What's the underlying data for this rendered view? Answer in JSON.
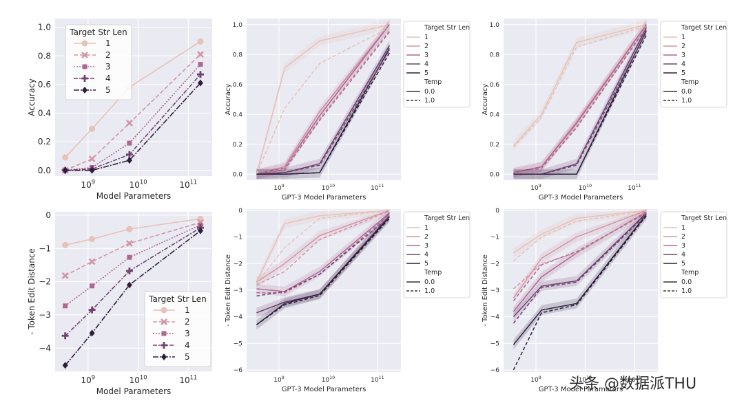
{
  "figure": {
    "watermark": "头条 @数据派THU"
  },
  "palette": [
    "#e6c2b8",
    "#d296a4",
    "#ae6790",
    "#70406e",
    "#2e1e3c"
  ],
  "chart_data": [
    {
      "id": "acc_left",
      "type": "line",
      "style": "markers",
      "xlabel": "Model Parameters",
      "ylabel": "Accuracy",
      "ylim": [
        -0.04,
        1.06
      ],
      "yticks": [
        "0.0",
        "0.2",
        "0.4",
        "0.6",
        "0.8",
        "1.0"
      ],
      "ytick_values": [
        0,
        0.2,
        0.4,
        0.6,
        0.8,
        1.0
      ],
      "xticks": [
        "10^9",
        "10^10",
        "10^11"
      ],
      "x": [
        0.35,
        1.2,
        6.7,
        175
      ],
      "legend": {
        "title": "Target Str Len",
        "labels": [
          "1",
          "2",
          "3",
          "4",
          "5"
        ],
        "position": "upper-left"
      },
      "series": [
        {
          "name": "1",
          "values": [
            0.09,
            0.29,
            0.58,
            0.9
          ]
        },
        {
          "name": "2",
          "values": [
            0.0,
            0.08,
            0.33,
            0.81
          ]
        },
        {
          "name": "3",
          "values": [
            0.0,
            0.02,
            0.19,
            0.74
          ]
        },
        {
          "name": "4",
          "values": [
            0.0,
            0.01,
            0.11,
            0.67
          ]
        },
        {
          "name": "5",
          "values": [
            0.0,
            0.0,
            0.07,
            0.61
          ]
        }
      ]
    },
    {
      "id": "acc_mid",
      "type": "line",
      "style": "temp",
      "xlabel": "GPT-3 Model Parameters",
      "ylabel": "Accuracy",
      "ylim": [
        -0.04,
        1.04
      ],
      "yticks": [
        "0.0",
        "0.2",
        "0.4",
        "0.6",
        "0.8",
        "1.0"
      ],
      "ytick_values": [
        0,
        0.2,
        0.4,
        0.6,
        0.8,
        1.0
      ],
      "xticks": [
        "10^9",
        "10^10",
        "10^11"
      ],
      "x": [
        0.35,
        1.3,
        6.7,
        175
      ],
      "legend": {
        "title": "Target Str Len",
        "labels": [
          "1",
          "2",
          "3",
          "4",
          "5"
        ],
        "temp_title": "Temp",
        "temp_labels": [
          "0.0",
          "1.0"
        ],
        "position": "outside-right"
      },
      "series": [
        {
          "name": "1",
          "temp": "0.0",
          "values": [
            0.0,
            0.71,
            0.89,
            1.0
          ]
        },
        {
          "name": "2",
          "temp": "0.0",
          "values": [
            0.0,
            0.05,
            0.42,
            1.0
          ]
        },
        {
          "name": "3",
          "temp": "0.0",
          "values": [
            0.0,
            0.04,
            0.39,
            1.0
          ]
        },
        {
          "name": "4",
          "temp": "0.0",
          "values": [
            0.0,
            0.01,
            0.07,
            0.86
          ]
        },
        {
          "name": "5",
          "temp": "0.0",
          "values": [
            0.0,
            0.0,
            0.01,
            0.84
          ]
        },
        {
          "name": "1",
          "temp": "1.0",
          "values": [
            0.0,
            0.44,
            0.74,
            0.98
          ]
        },
        {
          "name": "2",
          "temp": "1.0",
          "values": [
            0.0,
            0.04,
            0.37,
            0.96
          ]
        },
        {
          "name": "3",
          "temp": "1.0",
          "values": [
            0.0,
            0.03,
            0.36,
            0.95
          ]
        },
        {
          "name": "4",
          "temp": "1.0",
          "values": [
            0.0,
            0.01,
            0.06,
            0.83
          ]
        },
        {
          "name": "5",
          "temp": "1.0",
          "values": [
            0.0,
            0.0,
            0.01,
            0.81
          ]
        }
      ]
    },
    {
      "id": "acc_right",
      "type": "line",
      "style": "temp",
      "xlabel": "GPT-3 Model Parameters",
      "ylabel": "Accuracy",
      "ylim": [
        -0.04,
        1.04
      ],
      "yticks": [
        "0.0",
        "0.2",
        "0.4",
        "0.6",
        "0.8",
        "1.0"
      ],
      "ytick_values": [
        0,
        0.2,
        0.4,
        0.6,
        0.8,
        1.0
      ],
      "xticks": [
        "10^9",
        "10^10",
        "10^11"
      ],
      "x": [
        0.35,
        1.3,
        6.7,
        175
      ],
      "legend": {
        "title": "Target Str Len",
        "labels": [
          "1",
          "2",
          "3",
          "4",
          "5"
        ],
        "temp_title": "Temp",
        "temp_labels": [
          "0.0",
          "1.0"
        ],
        "position": "outside-right"
      },
      "series": [
        {
          "name": "1",
          "temp": "0.0",
          "values": [
            0.19,
            0.4,
            0.88,
            1.0
          ]
        },
        {
          "name": "2",
          "temp": "0.0",
          "values": [
            0.01,
            0.05,
            0.35,
            1.0
          ]
        },
        {
          "name": "3",
          "temp": "0.0",
          "values": [
            0.01,
            0.05,
            0.34,
            1.0
          ]
        },
        {
          "name": "4",
          "temp": "0.0",
          "values": [
            0.0,
            0.0,
            0.07,
            0.98
          ]
        },
        {
          "name": "5",
          "temp": "0.0",
          "values": [
            0.0,
            0.0,
            0.0,
            0.96
          ]
        },
        {
          "name": "1",
          "temp": "1.0",
          "values": [
            0.18,
            0.38,
            0.85,
            0.99
          ]
        },
        {
          "name": "2",
          "temp": "1.0",
          "values": [
            0.01,
            0.04,
            0.32,
            0.99
          ]
        },
        {
          "name": "3",
          "temp": "1.0",
          "values": [
            0.01,
            0.04,
            0.31,
            0.98
          ]
        },
        {
          "name": "4",
          "temp": "1.0",
          "values": [
            0.0,
            0.0,
            0.06,
            0.95
          ]
        },
        {
          "name": "5",
          "temp": "1.0",
          "values": [
            0.0,
            0.0,
            0.0,
            0.93
          ]
        }
      ]
    },
    {
      "id": "ted_left",
      "type": "line",
      "style": "markers",
      "xlabel": "Model Parameters",
      "ylabel": "- Token Edit Distance",
      "ylim": [
        -4.7,
        0.1
      ],
      "yticks": [
        "−4",
        "−3",
        "−2",
        "−1",
        "0"
      ],
      "ytick_values": [
        -4,
        -3,
        -2,
        -1,
        0
      ],
      "xticks": [
        "10^9",
        "10^10",
        "10^11"
      ],
      "x": [
        0.35,
        1.2,
        6.7,
        175
      ],
      "legend": {
        "title": "Target Str Len",
        "labels": [
          "1",
          "2",
          "3",
          "4",
          "5"
        ],
        "position": "lower-right"
      },
      "series": [
        {
          "name": "1",
          "values": [
            -0.9,
            -0.72,
            -0.42,
            -0.11
          ]
        },
        {
          "name": "2",
          "values": [
            -1.82,
            -1.4,
            -0.85,
            -0.22
          ]
        },
        {
          "name": "3",
          "values": [
            -2.73,
            -2.13,
            -1.27,
            -0.3
          ]
        },
        {
          "name": "4",
          "values": [
            -3.63,
            -2.85,
            -1.68,
            -0.38
          ]
        },
        {
          "name": "5",
          "values": [
            -4.52,
            -3.55,
            -2.1,
            -0.47
          ]
        }
      ]
    },
    {
      "id": "ted_mid",
      "type": "line",
      "style": "temp",
      "xlabel": "GPT-3 Model Parameters",
      "ylabel": "- Token Edit Distance",
      "ylim": [
        -6.08,
        0.05
      ],
      "yticks": [
        "−6",
        "−5",
        "−4",
        "−3",
        "−2",
        "−1",
        "0"
      ],
      "ytick_values": [
        -6,
        -5,
        -4,
        -3,
        -2,
        -1,
        0
      ],
      "xticks": [
        "10^9",
        "10^10",
        "10^11"
      ],
      "x": [
        0.35,
        1.3,
        6.7,
        175
      ],
      "legend": {
        "title": "Target Str Len",
        "labels": [
          "1",
          "2",
          "3",
          "4",
          "5"
        ],
        "temp_title": "Temp",
        "temp_labels": [
          "0.0",
          "1.0"
        ],
        "position": "outside-right"
      },
      "series": [
        {
          "name": "1",
          "temp": "0.0",
          "values": [
            -2.7,
            -0.5,
            -0.2,
            0.0
          ]
        },
        {
          "name": "2",
          "temp": "0.0",
          "values": [
            -2.7,
            -2.0,
            -0.95,
            0.0
          ]
        },
        {
          "name": "3",
          "temp": "0.0",
          "values": [
            -2.95,
            -3.05,
            -2.3,
            -0.1
          ]
        },
        {
          "name": "4",
          "temp": "0.0",
          "values": [
            -3.85,
            -3.45,
            -3.15,
            -0.2
          ]
        },
        {
          "name": "5",
          "temp": "0.0",
          "values": [
            -4.3,
            -3.5,
            -3.15,
            -0.25
          ]
        },
        {
          "name": "1",
          "temp": "1.0",
          "values": [
            -2.75,
            -1.4,
            -0.3,
            0.0
          ]
        },
        {
          "name": "2",
          "temp": "1.0",
          "values": [
            -2.8,
            -2.3,
            -1.1,
            -0.02
          ]
        },
        {
          "name": "3",
          "temp": "1.0",
          "values": [
            -3.1,
            -3.1,
            -2.4,
            -0.15
          ]
        },
        {
          "name": "4",
          "temp": "1.0",
          "values": [
            -3.22,
            -3.05,
            -2.4,
            -0.25
          ]
        },
        {
          "name": "5",
          "temp": "1.0",
          "values": [
            -4.3,
            -3.55,
            -3.2,
            -0.3
          ]
        }
      ]
    },
    {
      "id": "ted_right",
      "type": "line",
      "style": "temp",
      "xlabel": "GPT-3 Model Parameters",
      "ylabel": "- Token Edit Distance",
      "ylim": [
        -6.08,
        0.05
      ],
      "yticks": [
        "−6",
        "−5",
        "−4",
        "−3",
        "−2",
        "−1",
        "0"
      ],
      "ytick_values": [
        -6,
        -5,
        -4,
        -3,
        -2,
        -1,
        0
      ],
      "xticks": [
        "10^9",
        "10^10",
        "10^11"
      ],
      "x": [
        0.35,
        1.3,
        6.7,
        175
      ],
      "legend": {
        "title": "Target Str Len",
        "labels": [
          "1",
          "2",
          "3",
          "4",
          "5"
        ],
        "temp_title": "Temp",
        "temp_labels": [
          "0.0",
          "1.0"
        ],
        "position": "outside-right"
      },
      "series": [
        {
          "name": "1",
          "temp": "0.0",
          "values": [
            -1.6,
            -0.9,
            -0.3,
            0.0
          ]
        },
        {
          "name": "2",
          "temp": "0.0",
          "values": [
            -3.3,
            -1.8,
            -1.0,
            0.0
          ]
        },
        {
          "name": "3",
          "temp": "0.0",
          "values": [
            -3.8,
            -2.5,
            -1.6,
            -0.05
          ]
        },
        {
          "name": "4",
          "temp": "0.0",
          "values": [
            -4.0,
            -2.85,
            -2.65,
            -0.1
          ]
        },
        {
          "name": "5",
          "temp": "0.0",
          "values": [
            -5.05,
            -3.75,
            -3.5,
            -0.15
          ]
        },
        {
          "name": "1",
          "temp": "1.0",
          "values": [
            -1.9,
            -1.0,
            -0.4,
            -0.02
          ]
        },
        {
          "name": "2",
          "temp": "1.0",
          "values": [
            -2.95,
            -2.0,
            -1.6,
            -0.05
          ]
        },
        {
          "name": "3",
          "temp": "1.0",
          "values": [
            -3.4,
            -2.05,
            -1.55,
            -0.1
          ]
        },
        {
          "name": "4",
          "temp": "1.0",
          "values": [
            -4.25,
            -2.9,
            -2.7,
            -0.15
          ]
        },
        {
          "name": "5",
          "temp": "1.0",
          "values": [
            -6.0,
            -3.85,
            -3.55,
            -0.2
          ]
        }
      ]
    }
  ]
}
